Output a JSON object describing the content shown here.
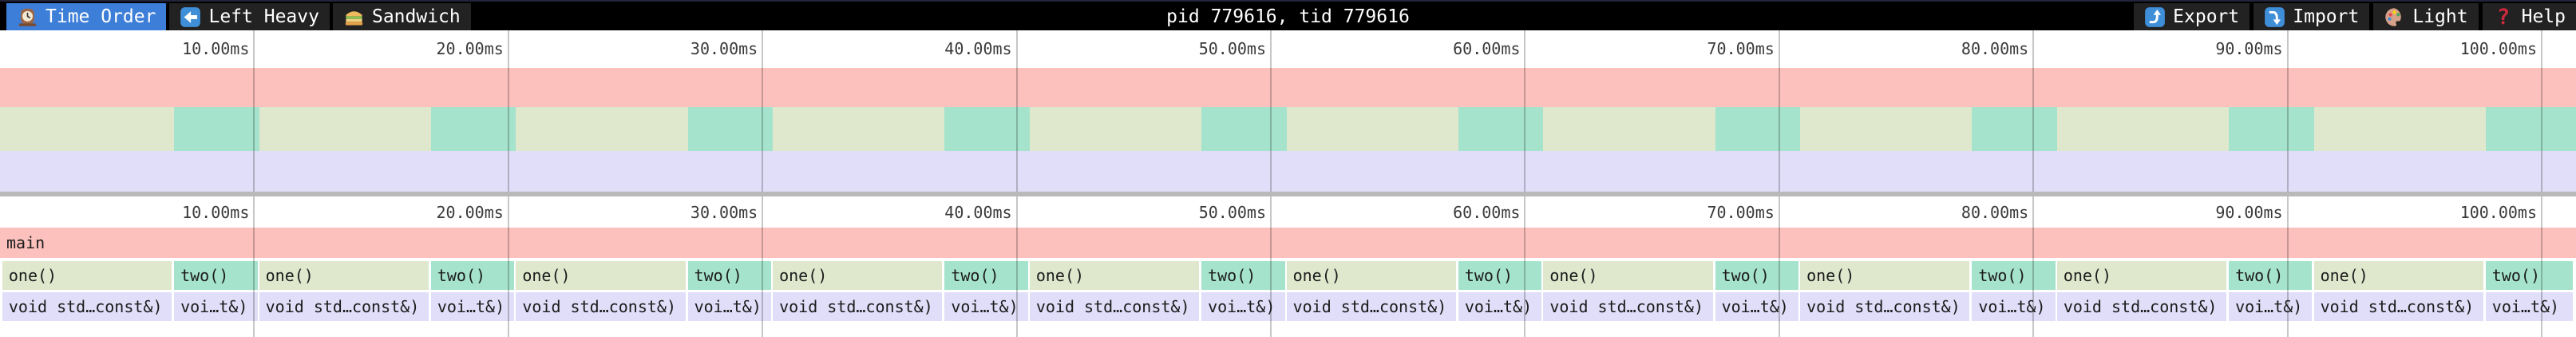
{
  "toolbar": {
    "title": "pid 779616, tid 779616",
    "tabs": [
      {
        "id": "time-order",
        "icon": "clock-icon",
        "label": "Time Order",
        "active": true
      },
      {
        "id": "left-heavy",
        "icon": "left-arrow-icon",
        "label": "Left Heavy",
        "active": false
      },
      {
        "id": "sandwich",
        "icon": "sandwich-icon",
        "label": "Sandwich",
        "active": false
      }
    ],
    "actions": [
      {
        "id": "export",
        "icon": "export-icon",
        "label": "Export"
      },
      {
        "id": "import",
        "icon": "import-icon",
        "label": "Import"
      },
      {
        "id": "theme",
        "icon": "palette-icon",
        "label": "Light"
      },
      {
        "id": "help",
        "icon": "help-icon",
        "label": "Help"
      }
    ]
  },
  "timeline": {
    "view": {
      "start_ms": 0,
      "end_ms": 101.35
    },
    "ticks": [
      {
        "ms": 10,
        "label": "10.00ms"
      },
      {
        "ms": 20,
        "label": "20.00ms"
      },
      {
        "ms": 30,
        "label": "30.00ms"
      },
      {
        "ms": 40,
        "label": "40.00ms"
      },
      {
        "ms": 50,
        "label": "50.00ms"
      },
      {
        "ms": 60,
        "label": "60.00ms"
      },
      {
        "ms": 70,
        "label": "70.00ms"
      },
      {
        "ms": 80,
        "label": "80.00ms"
      },
      {
        "ms": 90,
        "label": "90.00ms"
      },
      {
        "ms": 100,
        "label": "100.00ms"
      }
    ]
  },
  "flamegraph": {
    "root": {
      "label": "main",
      "start_ms": 0,
      "end_ms": 101.35
    },
    "labels": {
      "one": "one()",
      "two": "two()",
      "child_one": "void std…const&)",
      "child_two": "voi…t&)"
    },
    "periods": [
      {
        "one": [
          0.09,
          6.76
        ],
        "two": [
          6.85,
          10.13
        ]
      },
      {
        "one": [
          10.195,
          16.865
        ],
        "two": [
          16.955,
          20.235
        ]
      },
      {
        "one": [
          20.3,
          26.97
        ],
        "two": [
          27.06,
          30.34
        ]
      },
      {
        "one": [
          30.405,
          37.075
        ],
        "two": [
          37.165,
          40.445
        ]
      },
      {
        "one": [
          40.51,
          47.18
        ],
        "two": [
          47.27,
          50.55
        ]
      },
      {
        "one": [
          50.615,
          57.285
        ],
        "two": [
          57.375,
          60.655
        ]
      },
      {
        "one": [
          60.72,
          67.39
        ],
        "two": [
          67.48,
          70.76
        ]
      },
      {
        "one": [
          70.825,
          77.495
        ],
        "two": [
          77.585,
          80.865
        ]
      },
      {
        "one": [
          80.93,
          87.6
        ],
        "two": [
          87.69,
          90.97
        ]
      },
      {
        "one": [
          91.035,
          97.705
        ],
        "two": [
          97.795,
          101.23
        ]
      }
    ]
  },
  "colors": {
    "accent_blue": "#3d7ed8",
    "toolbar_bg": "#000000",
    "tab_bg": "#222222",
    "frame_main": "#fcc1bd",
    "frame_one": "#dfe8cd",
    "frame_two": "#a5e3cd",
    "frame_child": "#e0def8",
    "divider": "#b9b9b9"
  }
}
